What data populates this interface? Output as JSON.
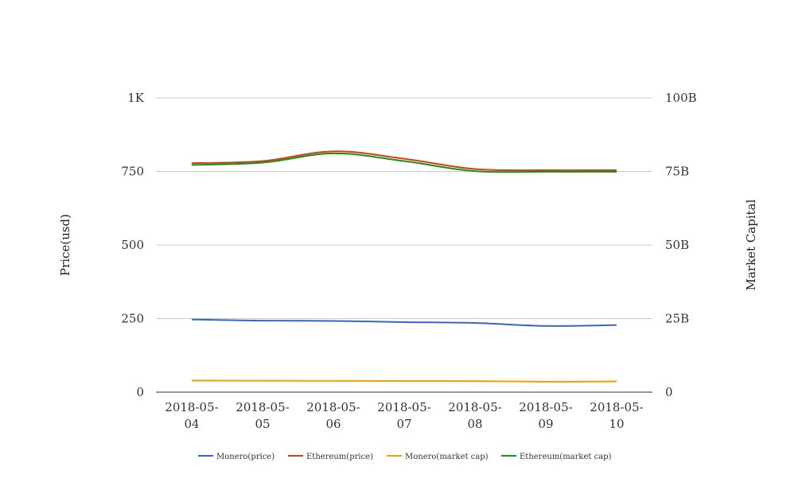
{
  "chart_data": {
    "type": "line",
    "categories": [
      "2018-05-04",
      "2018-05-05",
      "2018-05-06",
      "2018-05-07",
      "2018-05-08",
      "2018-05-09",
      "2018-05-10"
    ],
    "xtick_lines": [
      [
        "2018-05-",
        "04"
      ],
      [
        "2018-05-",
        "05"
      ],
      [
        "2018-05-",
        "06"
      ],
      [
        "2018-05-",
        "07"
      ],
      [
        "2018-05-",
        "08"
      ],
      [
        "2018-05-",
        "09"
      ],
      [
        "2018-05-",
        "10"
      ]
    ],
    "ylabel": "Price(usd)",
    "y2label": "Market Capital",
    "ylim": [
      0,
      1000
    ],
    "y2lim": [
      0,
      100000000000
    ],
    "yticks": [
      0,
      250,
      500,
      750,
      1000
    ],
    "ytick_labels": [
      "0",
      "250",
      "500",
      "750",
      "1K"
    ],
    "y2ticks": [
      0,
      25000000000,
      50000000000,
      75000000000,
      100000000000
    ],
    "y2tick_labels": [
      "0",
      "25B",
      "50B",
      "75B",
      "100B"
    ],
    "grid": true,
    "legend_position": "bottom",
    "series": [
      {
        "name": "Monero(price)",
        "axis": "left",
        "color": "#3366cc",
        "values": [
          247,
          243,
          242,
          238,
          235,
          225,
          228
        ]
      },
      {
        "name": "Ethereum(price)",
        "axis": "left",
        "color": "#dc3912",
        "values": [
          778,
          785,
          818,
          793,
          758,
          754,
          754
        ]
      },
      {
        "name": "Monero(market cap)",
        "axis": "right",
        "color": "#ff9900",
        "values": [
          3950000000,
          3870000000,
          3850000000,
          3790000000,
          3740000000,
          3560000000,
          3640000000
        ]
      },
      {
        "name": "Ethereum(market cap)",
        "axis": "right",
        "color": "#109618",
        "values": [
          77200000000,
          78000000000,
          81100000000,
          78500000000,
          75100000000,
          74900000000,
          74900000000
        ]
      }
    ]
  }
}
